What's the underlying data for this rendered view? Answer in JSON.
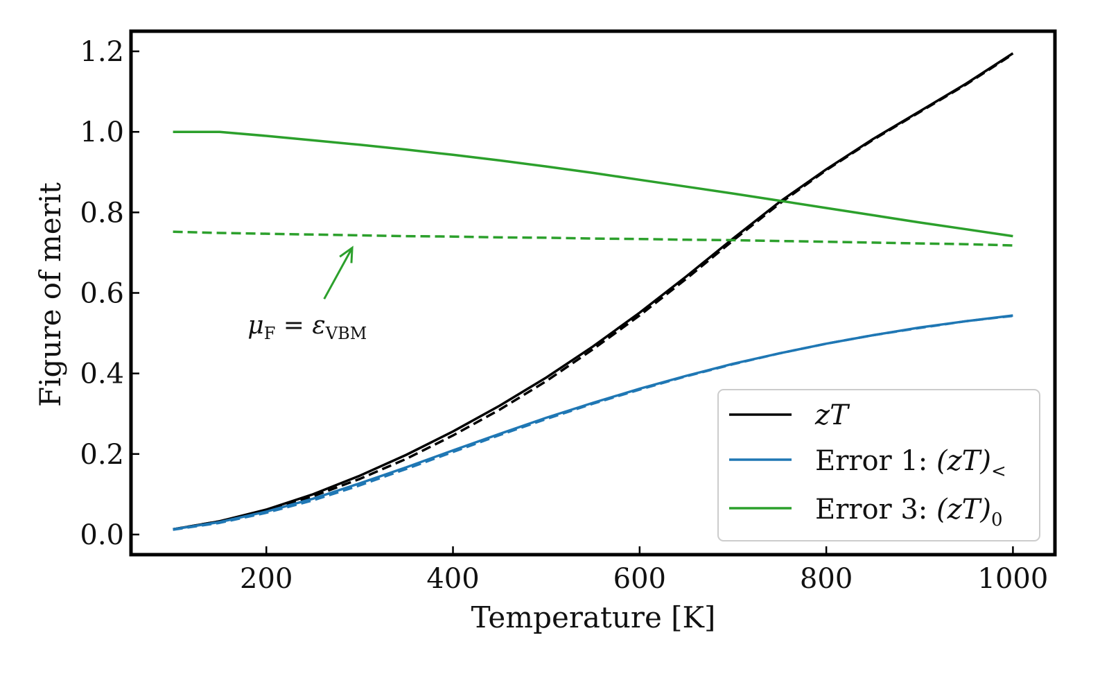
{
  "chart_data": {
    "type": "line",
    "xlabel": "Temperature [K]",
    "ylabel": "Figure of merit",
    "xlim": [
      55,
      1045
    ],
    "ylim": [
      -0.05,
      1.25
    ],
    "xticks": [
      200,
      400,
      600,
      800,
      1000
    ],
    "yticks": [
      0.0,
      0.2,
      0.4,
      0.6,
      0.8,
      1.0,
      1.2
    ],
    "xtick_labels": [
      "200",
      "400",
      "600",
      "800",
      "1000"
    ],
    "ytick_labels": [
      "0.0",
      "0.2",
      "0.4",
      "0.6",
      "0.8",
      "1.0",
      "1.2"
    ],
    "x": [
      100,
      150,
      200,
      250,
      300,
      350,
      400,
      450,
      500,
      550,
      600,
      650,
      700,
      750,
      800,
      850,
      900,
      950,
      1000
    ],
    "series": [
      {
        "name": "zT",
        "legend_math": "zT",
        "color": "#000000",
        "style": "solid",
        "in_legend": true,
        "values": [
          0.013,
          0.033,
          0.062,
          0.1,
          0.146,
          0.198,
          0.256,
          0.32,
          0.39,
          0.467,
          0.551,
          0.641,
          0.735,
          0.826,
          0.907,
          0.982,
          1.051,
          1.12,
          1.195
        ]
      },
      {
        "name": "zT (dashed)",
        "color": "#000000",
        "style": "dashed",
        "in_legend": false,
        "values": [
          0.013,
          0.033,
          0.06,
          0.095,
          0.138,
          0.188,
          0.246,
          0.31,
          0.381,
          0.46,
          0.544,
          0.635,
          0.73,
          0.822,
          0.905,
          0.98,
          1.049,
          1.118,
          1.193
        ]
      },
      {
        "name": "Error 1",
        "legend_prefix": "Error 1: ",
        "legend_math": "(zT)",
        "legend_sub": "<",
        "color": "#1f77b4",
        "style": "solid",
        "in_legend": true,
        "values": [
          0.013,
          0.031,
          0.057,
          0.089,
          0.127,
          0.167,
          0.209,
          0.25,
          0.29,
          0.327,
          0.362,
          0.394,
          0.424,
          0.45,
          0.474,
          0.495,
          0.514,
          0.53,
          0.544
        ]
      },
      {
        "name": "Error 1 (dashed)",
        "color": "#1f77b4",
        "style": "dashed",
        "in_legend": false,
        "values": [
          0.012,
          0.029,
          0.054,
          0.085,
          0.122,
          0.163,
          0.205,
          0.247,
          0.287,
          0.325,
          0.36,
          0.393,
          0.423,
          0.45,
          0.474,
          0.495,
          0.513,
          0.53,
          0.543
        ]
      },
      {
        "name": "Error 3",
        "legend_prefix": "Error 3: ",
        "legend_math": "(zT)",
        "legend_sub": "0",
        "color": "#2ca02c",
        "style": "solid",
        "in_legend": true,
        "values": [
          1.0,
          1.0,
          0.99,
          0.979,
          0.968,
          0.956,
          0.943,
          0.929,
          0.914,
          0.898,
          0.881,
          0.864,
          0.847,
          0.829,
          0.811,
          0.793,
          0.775,
          0.758,
          0.741
        ]
      },
      {
        "name": "Error 3 (dashed)",
        "color": "#2ca02c",
        "style": "dashed",
        "in_legend": false,
        "values": [
          0.752,
          0.749,
          0.747,
          0.745,
          0.743,
          0.741,
          0.74,
          0.738,
          0.737,
          0.735,
          0.734,
          0.732,
          0.731,
          0.729,
          0.727,
          0.725,
          0.723,
          0.721,
          0.718
        ]
      }
    ],
    "legend_location": "lower-right",
    "annotation": {
      "text_main": "μ",
      "text_main_sub": "F",
      "text_eq": " = ",
      "text_eps": "ε",
      "text_eps_sub": "VBM",
      "text_x": 180,
      "text_y": 0.52,
      "arrow_from": [
        262,
        0.585
      ],
      "arrow_to": [
        292,
        0.712
      ],
      "color": "#2ca02c"
    },
    "grid": false
  }
}
